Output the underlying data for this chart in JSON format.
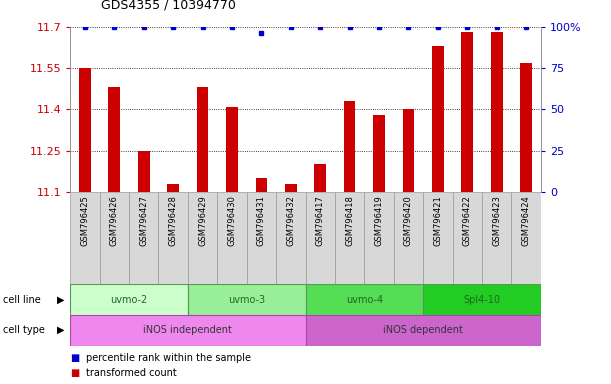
{
  "title": "GDS4355 / 10394770",
  "samples": [
    "GSM796425",
    "GSM796426",
    "GSM796427",
    "GSM796428",
    "GSM796429",
    "GSM796430",
    "GSM796431",
    "GSM796432",
    "GSM796417",
    "GSM796418",
    "GSM796419",
    "GSM796420",
    "GSM796421",
    "GSM796422",
    "GSM796423",
    "GSM796424"
  ],
  "red_values": [
    11.55,
    11.48,
    11.25,
    11.13,
    11.48,
    11.41,
    11.15,
    11.13,
    11.2,
    11.43,
    11.38,
    11.4,
    11.63,
    11.68,
    11.68,
    11.57
  ],
  "blue_values": [
    100,
    100,
    100,
    100,
    100,
    100,
    96,
    100,
    100,
    100,
    100,
    100,
    100,
    100,
    100,
    100
  ],
  "ylim_left": [
    11.1,
    11.7
  ],
  "ylim_right": [
    0,
    100
  ],
  "yticks_left": [
    11.1,
    11.25,
    11.4,
    11.55,
    11.7
  ],
  "yticks_right": [
    0,
    25,
    50,
    75,
    100
  ],
  "cell_lines": [
    {
      "label": "uvmo-2",
      "start": 0,
      "end": 3,
      "color": "#ccffcc"
    },
    {
      "label": "uvmo-3",
      "start": 4,
      "end": 7,
      "color": "#99ee99"
    },
    {
      "label": "uvmo-4",
      "start": 8,
      "end": 11,
      "color": "#55dd55"
    },
    {
      "label": "Spl4-10",
      "start": 12,
      "end": 15,
      "color": "#22cc22"
    }
  ],
  "cell_types": [
    {
      "label": "iNOS independent",
      "start": 0,
      "end": 7,
      "color": "#ee88ee"
    },
    {
      "label": "iNOS dependent",
      "start": 8,
      "end": 15,
      "color": "#cc66cc"
    }
  ],
  "bar_color": "#cc0000",
  "dot_color": "#0000cc",
  "background_color": "#ffffff",
  "red_label_color": "#cc0000",
  "blue_label_color": "#0000cc",
  "bar_width": 0.4,
  "cell_line_text_color": "#226622",
  "cell_type_text_color": "#333333"
}
